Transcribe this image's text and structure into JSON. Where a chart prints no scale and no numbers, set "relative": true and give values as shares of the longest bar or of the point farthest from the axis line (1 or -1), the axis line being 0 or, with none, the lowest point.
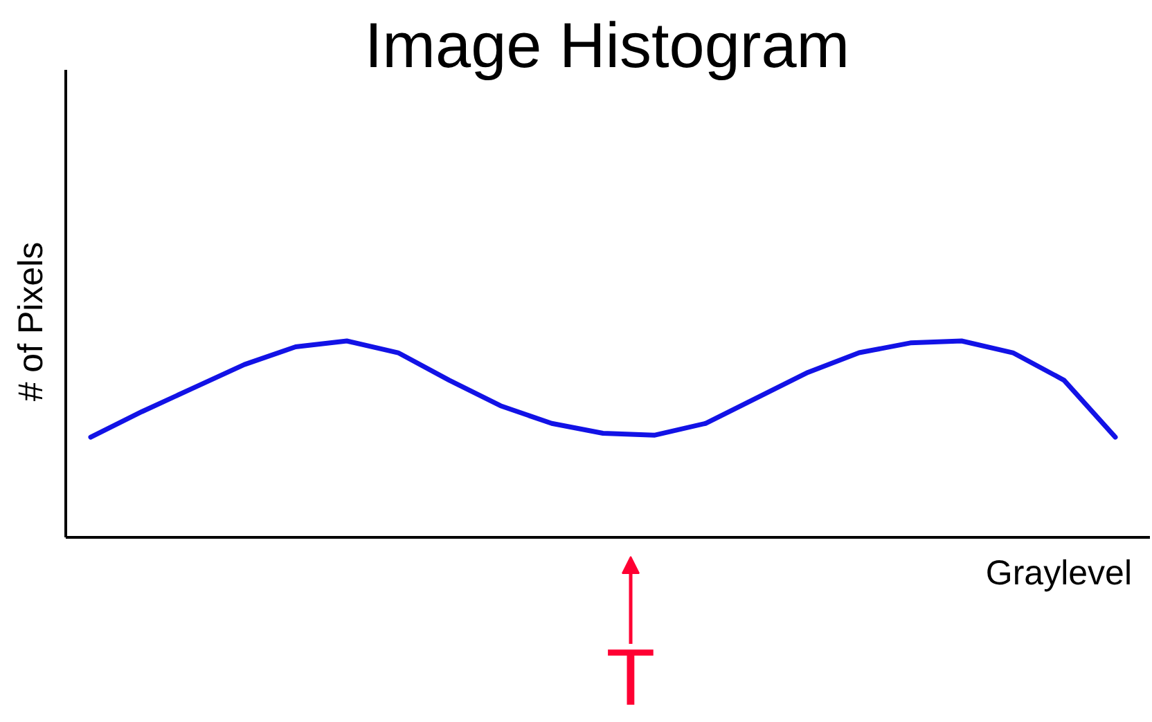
{
  "chart_data": {
    "type": "line",
    "title": "Image Histogram",
    "xlabel": "Graylevel",
    "ylabel": "# of Pixels",
    "categories": [
      null,
      null,
      null,
      null,
      null,
      null,
      null,
      null,
      null,
      null,
      null,
      null,
      null,
      null,
      null,
      null,
      null,
      null,
      null,
      null,
      null
    ],
    "series": [
      {
        "color": "#1212e6",
        "values": [
          0.51,
          0.64,
          0.76,
          0.88,
          0.97,
          1.0,
          0.94,
          0.8,
          0.67,
          0.58,
          0.53,
          0.52,
          0.58,
          0.71,
          0.84,
          0.94,
          0.99,
          1.0,
          0.94,
          0.8,
          0.51
        ]
      }
    ],
    "relative": true,
    "marker": "none",
    "line_style": "solid",
    "annotations": [
      "T"
    ]
  }
}
